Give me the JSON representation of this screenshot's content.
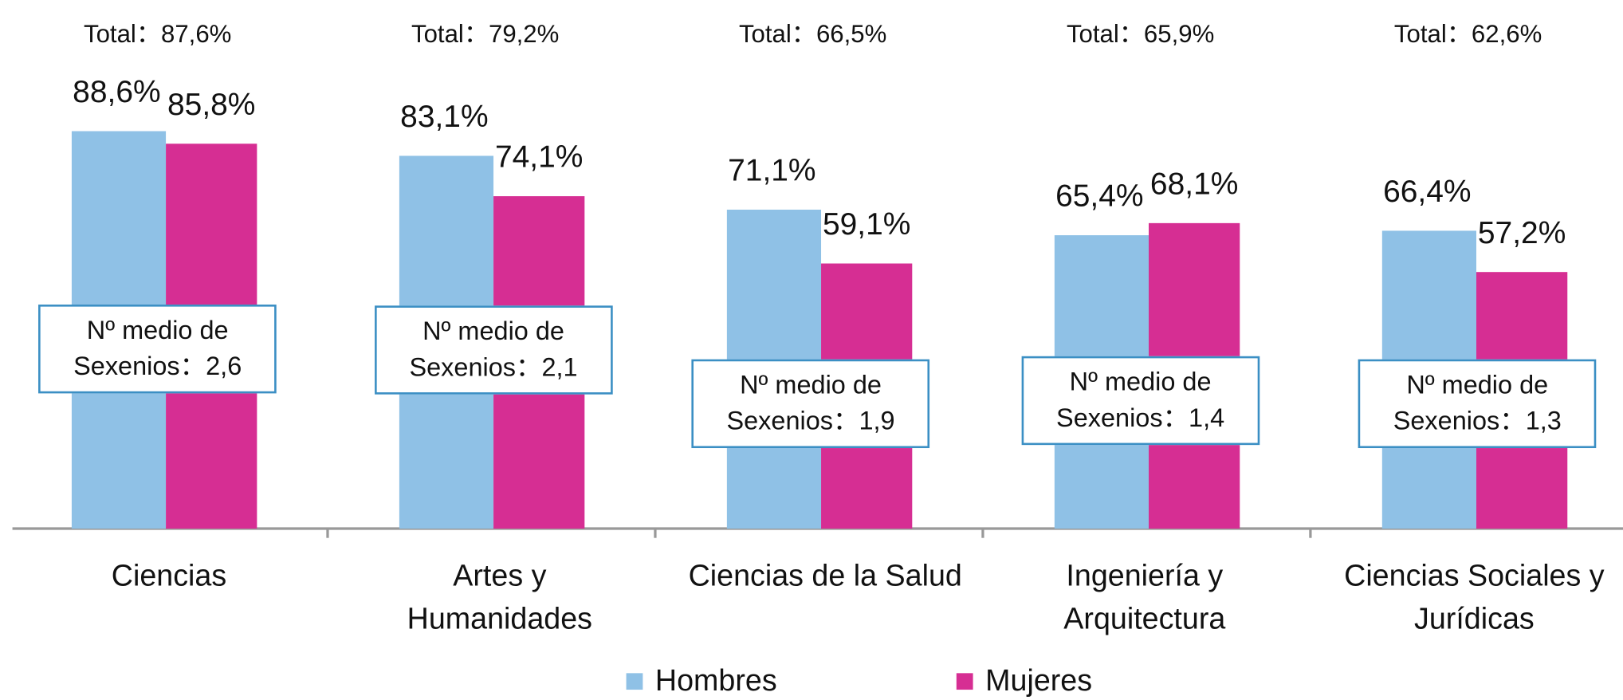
{
  "chart_data": {
    "type": "bar",
    "categories": [
      "Ciencias",
      "Artes y\nHumanidades",
      "Ciencias de la Salud",
      "Ingeniería y\nArquitectura",
      "Ciencias Sociales y\nJurídicas"
    ],
    "series": [
      {
        "name": "Hombres",
        "color": "#8fc1e6",
        "values": [
          88.6,
          83.1,
          71.1,
          65.4,
          66.4
        ],
        "value_labels": [
          "88,6%",
          "83,1%",
          "71,1%",
          "65,4%",
          "66,4%"
        ]
      },
      {
        "name": "Mujeres",
        "color": "#d62e93",
        "values": [
          85.8,
          74.1,
          59.1,
          68.1,
          57.2
        ],
        "value_labels": [
          "85,8%",
          "74,1%",
          "59,1%",
          "68,1%",
          "57,2%"
        ]
      }
    ],
    "totals": [
      "Total：87,6%",
      "Total：79,2%",
      "Total：66,5%",
      "Total：65,9%",
      "Total：62,6%"
    ],
    "box_labels": [
      "Nº medio de\nSexenios：2,6",
      "Nº medio de\nSexenios：2,1",
      "Nº medio de\nSexenios：1,9",
      "Nº medio de\nSexenios：1,4",
      "Nº medio de\nSexenios：1,3"
    ],
    "ylim": [
      0,
      100
    ],
    "grid": false,
    "legend": "bottom"
  }
}
